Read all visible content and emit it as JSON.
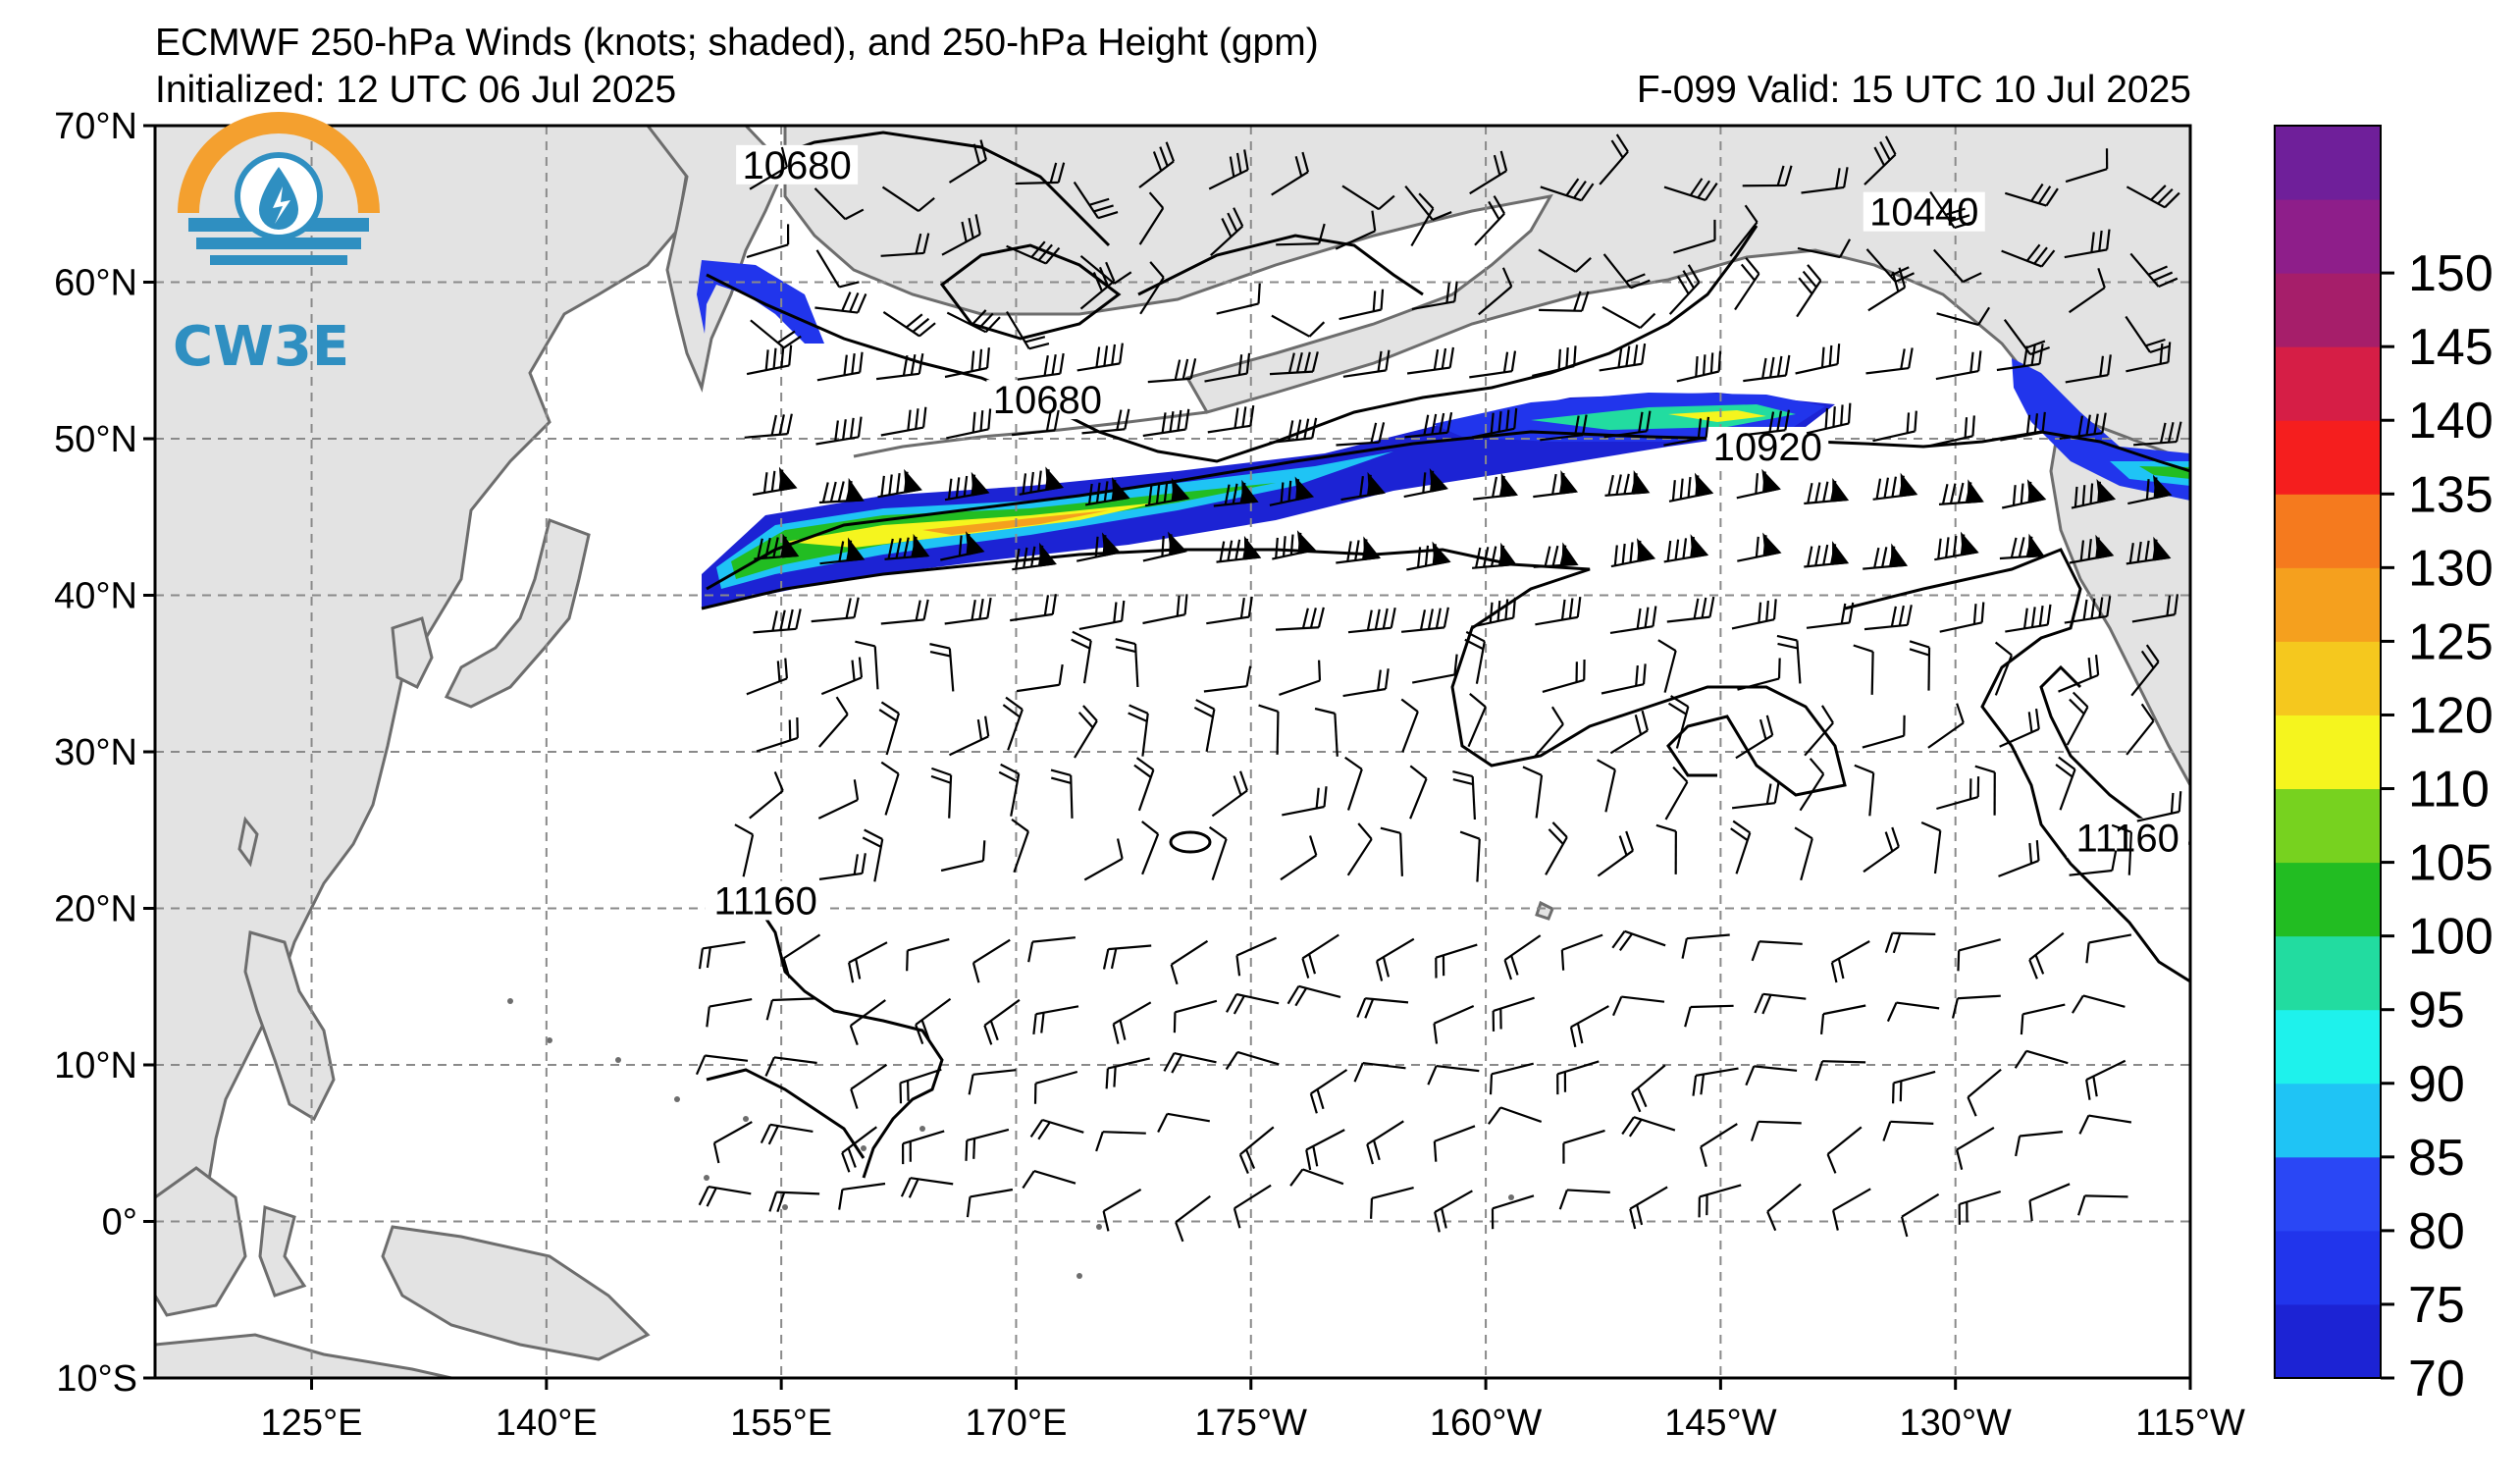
{
  "header": {
    "title": "ECMWF 250-hPa Winds (knots; shaded), and 250-hPa Height (gpm)",
    "initialized": "Initialized: 12 UTC 06 Jul 2025",
    "valid": "F-099  Valid: 15 UTC 10 Jul 2025"
  },
  "logo": {
    "text": "CW3E",
    "icon": "water-drop-bolt-icon"
  },
  "axes": {
    "lon_ticks": [
      {
        "label": "125°E",
        "lon": 125
      },
      {
        "label": "140°E",
        "lon": 140
      },
      {
        "label": "155°E",
        "lon": 155
      },
      {
        "label": "170°E",
        "lon": 170
      },
      {
        "label": "175°W",
        "lon": 185
      },
      {
        "label": "160°W",
        "lon": 200
      },
      {
        "label": "145°W",
        "lon": 215
      },
      {
        "label": "130°W",
        "lon": 230
      },
      {
        "label": "115°W",
        "lon": 245
      }
    ],
    "lat_ticks": [
      {
        "label": "70°N",
        "lat": 70
      },
      {
        "label": "60°N",
        "lat": 60
      },
      {
        "label": "50°N",
        "lat": 50
      },
      {
        "label": "40°N",
        "lat": 40
      },
      {
        "label": "30°N",
        "lat": 30
      },
      {
        "label": "20°N",
        "lat": 20
      },
      {
        "label": "10°N",
        "lat": 10
      },
      {
        "label": "0°",
        "lat": 0
      },
      {
        "label": "10°S",
        "lat": -10
      }
    ],
    "lon_range": [
      115,
      245
    ],
    "lat_range": [
      -10,
      70
    ]
  },
  "contour_labels": [
    {
      "text": "10680",
      "lon": 156,
      "lat": 67
    },
    {
      "text": "10680",
      "lon": 172,
      "lat": 52
    },
    {
      "text": "10440",
      "lon": 228,
      "lat": 64
    },
    {
      "text": "10920",
      "lon": 218,
      "lat": 49
    },
    {
      "text": "11160",
      "lon": 154,
      "lat": 20
    },
    {
      "text": "11160",
      "lon": 241,
      "lat": 24
    }
  ],
  "colorbar": {
    "ticks": [
      "70",
      "75",
      "80",
      "85",
      "90",
      "95",
      "100",
      "105",
      "110",
      "120",
      "125",
      "130",
      "135",
      "140",
      "145",
      "150"
    ],
    "colors": [
      "#1c23d4",
      "#2135ec",
      "#2a47f5",
      "#1fc4f5",
      "#1ef2ec",
      "#22dca0",
      "#22bd22",
      "#77d21f",
      "#f5f51e",
      "#f5c81e",
      "#f5a01e",
      "#f57a1e",
      "#f51e1e",
      "#d61e46",
      "#a61e6a",
      "#8e1e8a",
      "#6f1f9a"
    ]
  },
  "colors": {
    "land": "#e3e3e3",
    "coast": "#6d6d6d",
    "grid": "#8a8a8a",
    "contour": "#000000"
  }
}
